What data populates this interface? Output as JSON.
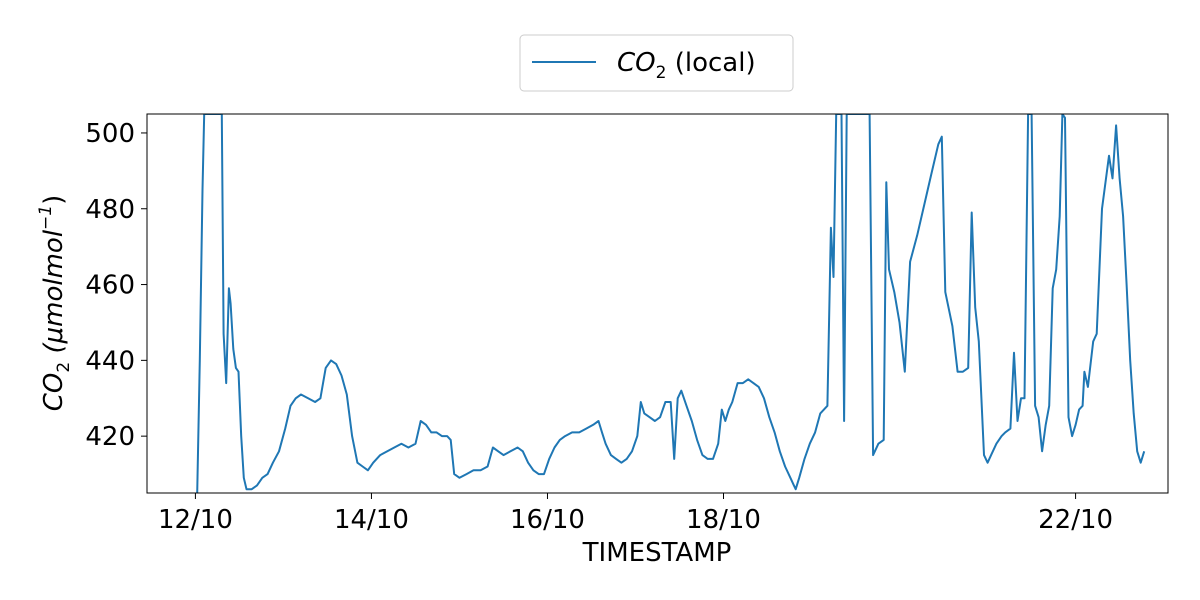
{
  "chart_data": {
    "type": "line",
    "xlabel": "TIMESTAMP",
    "ylabel": {
      "main": "CO",
      "sub": "2",
      "unit": "(μmolmol",
      "sup": "−1",
      "close": ")"
    },
    "legend": {
      "main": "CO",
      "sub": "2",
      "suffix": " (local)",
      "placement": "top-center, above plot"
    },
    "x_tick_labels": [
      "12/10",
      "14/10",
      "16/10",
      "18/10",
      "22/10"
    ],
    "x_tick_dates": [
      12,
      14,
      16,
      18,
      22
    ],
    "y_ticks": [
      420,
      440,
      460,
      480,
      500
    ],
    "xlim": [
      11.45,
      23.05
    ],
    "ylim": [
      405,
      505
    ],
    "grid": false,
    "series": [
      {
        "name": "CO₂ (local)",
        "color": "#1f77b4",
        "points": [
          [
            12.02,
            405
          ],
          [
            12.05,
            440
          ],
          [
            12.08,
            485
          ],
          [
            12.1,
            505
          ],
          [
            12.2,
            505
          ],
          [
            12.3,
            505
          ],
          [
            12.32,
            447
          ],
          [
            12.35,
            434
          ],
          [
            12.38,
            459
          ],
          [
            12.4,
            455
          ],
          [
            12.43,
            443
          ],
          [
            12.46,
            438
          ],
          [
            12.49,
            437
          ],
          [
            12.52,
            420
          ],
          [
            12.55,
            409
          ],
          [
            12.58,
            406
          ],
          [
            12.64,
            406
          ],
          [
            12.7,
            407
          ],
          [
            12.76,
            409
          ],
          [
            12.82,
            410
          ],
          [
            12.88,
            413
          ],
          [
            12.95,
            416
          ],
          [
            13.02,
            422
          ],
          [
            13.08,
            428
          ],
          [
            13.14,
            430
          ],
          [
            13.2,
            431
          ],
          [
            13.28,
            430
          ],
          [
            13.36,
            429
          ],
          [
            13.42,
            430
          ],
          [
            13.48,
            438
          ],
          [
            13.54,
            440
          ],
          [
            13.6,
            439
          ],
          [
            13.66,
            436
          ],
          [
            13.72,
            431
          ],
          [
            13.78,
            420
          ],
          [
            13.84,
            413
          ],
          [
            13.9,
            412
          ],
          [
            13.96,
            411
          ],
          [
            14.02,
            413
          ],
          [
            14.1,
            415
          ],
          [
            14.18,
            416
          ],
          [
            14.26,
            417
          ],
          [
            14.34,
            418
          ],
          [
            14.42,
            417
          ],
          [
            14.5,
            418
          ],
          [
            14.56,
            424
          ],
          [
            14.62,
            423
          ],
          [
            14.68,
            421
          ],
          [
            14.74,
            421
          ],
          [
            14.8,
            420
          ],
          [
            14.86,
            420
          ],
          [
            14.9,
            419
          ],
          [
            14.94,
            410
          ],
          [
            15.0,
            409
          ],
          [
            15.08,
            410
          ],
          [
            15.16,
            411
          ],
          [
            15.24,
            411
          ],
          [
            15.32,
            412
          ],
          [
            15.38,
            417
          ],
          [
            15.44,
            416
          ],
          [
            15.5,
            415
          ],
          [
            15.58,
            416
          ],
          [
            15.66,
            417
          ],
          [
            15.72,
            416
          ],
          [
            15.78,
            413
          ],
          [
            15.84,
            411
          ],
          [
            15.9,
            410
          ],
          [
            15.96,
            410
          ],
          [
            16.02,
            414
          ],
          [
            16.08,
            417
          ],
          [
            16.14,
            419
          ],
          [
            16.2,
            420
          ],
          [
            16.28,
            421
          ],
          [
            16.36,
            421
          ],
          [
            16.44,
            422
          ],
          [
            16.52,
            423
          ],
          [
            16.58,
            424
          ],
          [
            16.62,
            421
          ],
          [
            16.66,
            418
          ],
          [
            16.72,
            415
          ],
          [
            16.78,
            414
          ],
          [
            16.84,
            413
          ],
          [
            16.9,
            414
          ],
          [
            16.96,
            416
          ],
          [
            17.02,
            420
          ],
          [
            17.06,
            429
          ],
          [
            17.1,
            426
          ],
          [
            17.16,
            425
          ],
          [
            17.22,
            424
          ],
          [
            17.28,
            425
          ],
          [
            17.34,
            429
          ],
          [
            17.4,
            429
          ],
          [
            17.44,
            414
          ],
          [
            17.48,
            430
          ],
          [
            17.52,
            432
          ],
          [
            17.58,
            428
          ],
          [
            17.64,
            424
          ],
          [
            17.7,
            419
          ],
          [
            17.76,
            415
          ],
          [
            17.82,
            414
          ],
          [
            17.88,
            414
          ],
          [
            17.94,
            418
          ],
          [
            17.98,
            427
          ],
          [
            18.02,
            424
          ],
          [
            18.06,
            427
          ],
          [
            18.1,
            429
          ],
          [
            18.16,
            434
          ],
          [
            18.22,
            434
          ],
          [
            18.28,
            435
          ],
          [
            18.34,
            434
          ],
          [
            18.4,
            433
          ],
          [
            18.46,
            430
          ],
          [
            18.52,
            425
          ],
          [
            18.58,
            421
          ],
          [
            18.64,
            416
          ],
          [
            18.7,
            412
          ],
          [
            18.76,
            409
          ],
          [
            18.8,
            407
          ],
          [
            18.82,
            406
          ],
          [
            18.86,
            409
          ],
          [
            18.92,
            414
          ],
          [
            18.98,
            418
          ],
          [
            19.04,
            421
          ],
          [
            19.1,
            426
          ],
          [
            19.14,
            427
          ],
          [
            19.18,
            428
          ],
          [
            19.22,
            475
          ],
          [
            19.25,
            462
          ],
          [
            19.28,
            505
          ],
          [
            19.34,
            505
          ],
          [
            19.37,
            424
          ],
          [
            19.4,
            505
          ],
          [
            19.5,
            505
          ],
          [
            19.6,
            505
          ],
          [
            19.66,
            505
          ],
          [
            19.7,
            415
          ],
          [
            19.76,
            418
          ],
          [
            19.82,
            419
          ],
          [
            19.85,
            487
          ],
          [
            19.88,
            464
          ],
          [
            19.94,
            458
          ],
          [
            20.0,
            450
          ],
          [
            20.06,
            437
          ],
          [
            20.12,
            466
          ],
          [
            20.2,
            473
          ],
          [
            20.28,
            481
          ],
          [
            20.36,
            489
          ],
          [
            20.44,
            497
          ],
          [
            20.48,
            499
          ],
          [
            20.52,
            458
          ],
          [
            20.6,
            449
          ],
          [
            20.66,
            437
          ],
          [
            20.72,
            437
          ],
          [
            20.78,
            438
          ],
          [
            20.82,
            479
          ],
          [
            20.86,
            454
          ],
          [
            20.9,
            445
          ],
          [
            20.96,
            415
          ],
          [
            21.0,
            413
          ],
          [
            21.04,
            415
          ],
          [
            21.1,
            418
          ],
          [
            21.16,
            420
          ],
          [
            21.2,
            421
          ],
          [
            21.26,
            422
          ],
          [
            21.3,
            442
          ],
          [
            21.34,
            424
          ],
          [
            21.38,
            430
          ],
          [
            21.42,
            430
          ],
          [
            21.46,
            505
          ],
          [
            21.5,
            505
          ],
          [
            21.54,
            428
          ],
          [
            21.58,
            425
          ],
          [
            21.62,
            416
          ],
          [
            21.66,
            423
          ],
          [
            21.7,
            428
          ],
          [
            21.74,
            459
          ],
          [
            21.78,
            464
          ],
          [
            21.82,
            478
          ],
          [
            21.85,
            505
          ],
          [
            21.88,
            504
          ],
          [
            21.92,
            425
          ],
          [
            21.96,
            420
          ],
          [
            22.0,
            423
          ],
          [
            22.04,
            427
          ],
          [
            22.08,
            428
          ],
          [
            22.1,
            437
          ],
          [
            22.14,
            433
          ],
          [
            22.2,
            445
          ],
          [
            22.24,
            447
          ],
          [
            22.3,
            480
          ],
          [
            22.34,
            487
          ],
          [
            22.38,
            494
          ],
          [
            22.42,
            488
          ],
          [
            22.46,
            502
          ],
          [
            22.5,
            488
          ],
          [
            22.54,
            478
          ],
          [
            22.58,
            460
          ],
          [
            22.62,
            440
          ],
          [
            22.66,
            426
          ],
          [
            22.7,
            416
          ],
          [
            22.74,
            413
          ],
          [
            22.78,
            416
          ]
        ]
      }
    ]
  }
}
